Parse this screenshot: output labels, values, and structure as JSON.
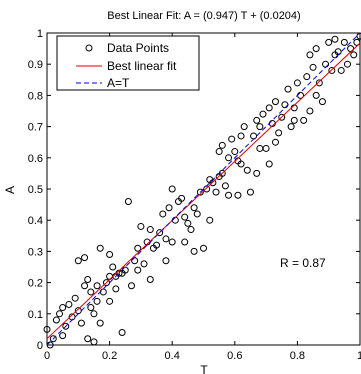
{
  "chart_data": {
    "type": "scatter",
    "title": "Best Linear Fit:  A = (0.947) T + (0.0204)",
    "xlabel": "T",
    "ylabel": "A",
    "xlim": [
      0,
      1
    ],
    "ylim": [
      0,
      1
    ],
    "xticks": [
      "0",
      "0.2",
      "0.4",
      "0.6",
      "0.8",
      "1"
    ],
    "yticks": [
      "0",
      "0.1",
      "0.2",
      "0.3",
      "0.4",
      "0.5",
      "0.6",
      "0.7",
      "0.8",
      "0.9",
      "1"
    ],
    "legend_position": "top-left",
    "annotation": "R = 0.87",
    "series": [
      {
        "name": "Data Points",
        "kind": "markers",
        "marker": "open-circle",
        "color": "#000000",
        "points": [
          [
            0.0,
            0.05
          ],
          [
            0.01,
            0.0
          ],
          [
            0.02,
            0.02
          ],
          [
            0.03,
            0.08
          ],
          [
            0.04,
            0.1
          ],
          [
            0.05,
            0.12
          ],
          [
            0.05,
            0.03
          ],
          [
            0.06,
            0.06
          ],
          [
            0.07,
            0.13
          ],
          [
            0.08,
            0.09
          ],
          [
            0.09,
            0.15
          ],
          [
            0.1,
            0.11
          ],
          [
            0.1,
            0.27
          ],
          [
            0.11,
            0.07
          ],
          [
            0.12,
            0.19
          ],
          [
            0.12,
            0.28
          ],
          [
            0.13,
            0.02
          ],
          [
            0.13,
            0.21
          ],
          [
            0.14,
            0.17
          ],
          [
            0.14,
            0.12
          ],
          [
            0.15,
            0.01
          ],
          [
            0.15,
            0.1
          ],
          [
            0.16,
            0.14
          ],
          [
            0.16,
            0.19
          ],
          [
            0.17,
            0.07
          ],
          [
            0.17,
            0.31
          ],
          [
            0.18,
            0.17
          ],
          [
            0.19,
            0.2
          ],
          [
            0.2,
            0.22
          ],
          [
            0.2,
            0.14
          ],
          [
            0.21,
            0.25
          ],
          [
            0.22,
            0.18
          ],
          [
            0.23,
            0.23
          ],
          [
            0.24,
            0.23
          ],
          [
            0.24,
            0.04
          ],
          [
            0.25,
            0.24
          ],
          [
            0.26,
            0.46
          ],
          [
            0.27,
            0.19
          ],
          [
            0.28,
            0.27
          ],
          [
            0.29,
            0.31
          ],
          [
            0.3,
            0.38
          ],
          [
            0.31,
            0.26
          ],
          [
            0.32,
            0.33
          ],
          [
            0.33,
            0.37
          ],
          [
            0.34,
            0.31
          ],
          [
            0.35,
            0.32
          ],
          [
            0.36,
            0.36
          ],
          [
            0.37,
            0.42
          ],
          [
            0.38,
            0.34
          ],
          [
            0.39,
            0.44
          ],
          [
            0.4,
            0.33
          ],
          [
            0.4,
            0.5
          ],
          [
            0.41,
            0.4
          ],
          [
            0.42,
            0.46
          ],
          [
            0.43,
            0.47
          ],
          [
            0.44,
            0.41
          ],
          [
            0.45,
            0.39
          ],
          [
            0.46,
            0.37
          ],
          [
            0.47,
            0.44
          ],
          [
            0.48,
            0.42
          ],
          [
            0.49,
            0.49
          ],
          [
            0.5,
            0.31
          ],
          [
            0.51,
            0.5
          ],
          [
            0.52,
            0.53
          ],
          [
            0.53,
            0.52
          ],
          [
            0.54,
            0.49
          ],
          [
            0.55,
            0.54
          ],
          [
            0.56,
            0.55
          ],
          [
            0.57,
            0.51
          ],
          [
            0.58,
            0.6
          ],
          [
            0.59,
            0.66
          ],
          [
            0.6,
            0.62
          ],
          [
            0.61,
            0.59
          ],
          [
            0.62,
            0.58
          ],
          [
            0.63,
            0.7
          ],
          [
            0.64,
            0.56
          ],
          [
            0.65,
            0.49
          ],
          [
            0.66,
            0.67
          ],
          [
            0.67,
            0.55
          ],
          [
            0.68,
            0.7
          ],
          [
            0.69,
            0.74
          ],
          [
            0.7,
            0.63
          ],
          [
            0.71,
            0.76
          ],
          [
            0.72,
            0.71
          ],
          [
            0.73,
            0.65
          ],
          [
            0.74,
            0.68
          ],
          [
            0.75,
            0.73
          ],
          [
            0.76,
            0.77
          ],
          [
            0.77,
            0.82
          ],
          [
            0.78,
            0.7
          ],
          [
            0.79,
            0.76
          ],
          [
            0.8,
            0.84
          ],
          [
            0.81,
            0.8
          ],
          [
            0.82,
            0.72
          ],
          [
            0.83,
            0.86
          ],
          [
            0.84,
            0.75
          ],
          [
            0.85,
            0.89
          ],
          [
            0.86,
            0.8
          ],
          [
            0.87,
            0.84
          ],
          [
            0.88,
            0.78
          ],
          [
            0.89,
            0.9
          ],
          [
            0.9,
            0.97
          ],
          [
            0.91,
            0.88
          ],
          [
            0.92,
            0.93
          ],
          [
            0.93,
            0.94
          ],
          [
            0.94,
            0.88
          ],
          [
            0.95,
            0.97
          ],
          [
            0.96,
            0.9
          ],
          [
            0.97,
            0.95
          ],
          [
            0.98,
            0.93
          ],
          [
            0.99,
            0.97
          ],
          [
            1.0,
            0.99
          ],
          [
            0.55,
            0.62
          ],
          [
            0.62,
            0.67
          ],
          [
            0.68,
            0.63
          ],
          [
            0.71,
            0.58
          ],
          [
            0.33,
            0.21
          ],
          [
            0.22,
            0.22
          ],
          [
            0.47,
            0.3
          ],
          [
            0.58,
            0.48
          ],
          [
            0.86,
            0.95
          ],
          [
            0.79,
            0.72
          ],
          [
            0.52,
            0.4
          ],
          [
            0.44,
            0.33
          ],
          [
            0.38,
            0.27
          ],
          [
            0.61,
            0.48
          ],
          [
            0.73,
            0.78
          ],
          [
            0.84,
            0.93
          ],
          [
            0.29,
            0.24
          ],
          [
            0.67,
            0.72
          ],
          [
            0.2,
            0.29
          ],
          [
            0.56,
            0.64
          ],
          [
            0.92,
            0.98
          ]
        ]
      },
      {
        "name": "Best linear fit",
        "kind": "line",
        "color": "#e00000",
        "slope": 0.947,
        "intercept": 0.0204
      },
      {
        "name": "A=T",
        "kind": "dashed-line",
        "color": "#0000ff",
        "slope": 1,
        "intercept": 0
      }
    ]
  }
}
